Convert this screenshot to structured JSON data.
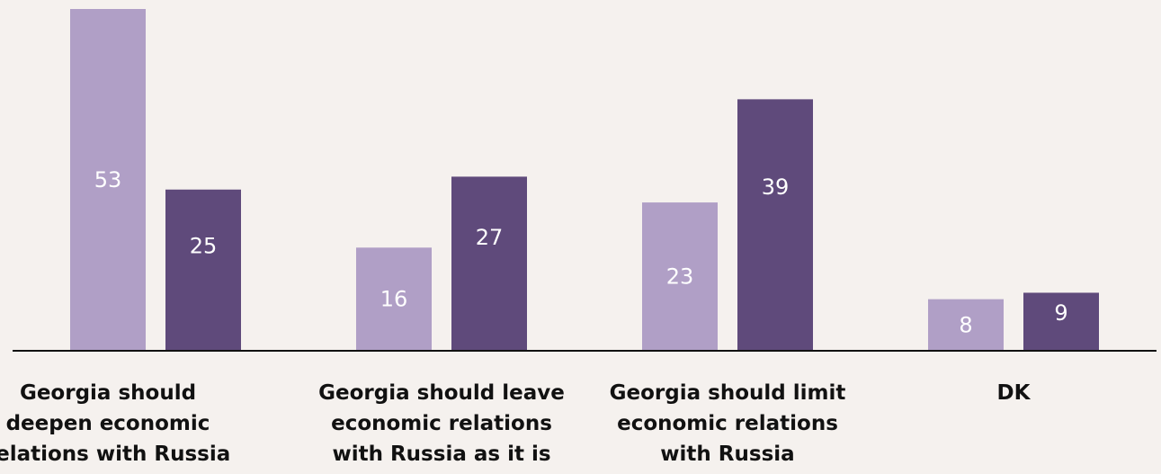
{
  "chart_data": {
    "type": "bar",
    "categories": [
      "Georgia should\ndeepen economic\nrelations with Russia",
      "Georgia should leave\neconomic relations\nwith Russia as it is",
      "Georgia should limit\neconomic relations\nwith Russia",
      "DK"
    ],
    "series": [
      {
        "values": [
          53,
          16,
          23,
          8
        ],
        "color": "#b09fc6"
      },
      {
        "values": [
          25,
          27,
          39,
          9
        ],
        "color": "#5f4a7b"
      }
    ],
    "ylim": [
      0,
      53
    ],
    "grid": false,
    "legend": "none",
    "axis_color": "#111111"
  }
}
